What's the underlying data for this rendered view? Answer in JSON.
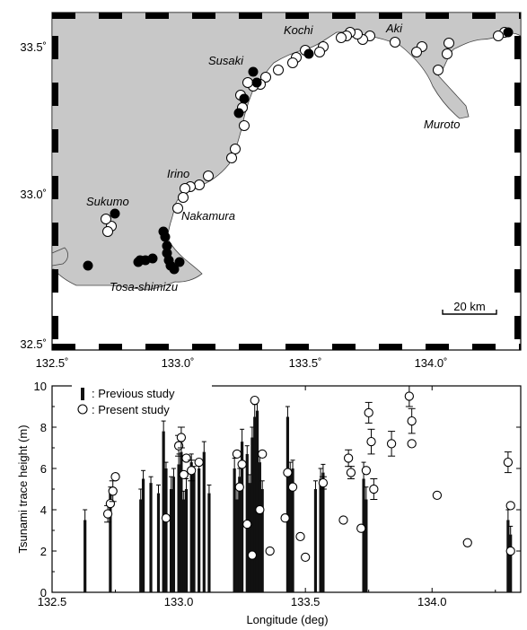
{
  "colors": {
    "land": "#c8c8c8",
    "sea": "#ffffff",
    "ink": "#000000",
    "bar": "#111111"
  },
  "map": {
    "lon_ticks": [
      "132.5˚",
      "133.0˚",
      "133.5˚",
      "134.0˚"
    ],
    "lat_ticks": [
      "33.5˚",
      "33.0˚",
      "32.5˚"
    ],
    "lon_range": [
      132.5,
      134.35
    ],
    "lat_range": [
      32.48,
      33.6
    ],
    "place_labels": [
      "Kochi",
      "Aki",
      "Susaki",
      "Muroto",
      "Irino",
      "Sukumo",
      "Nakamura",
      "Tosa-shimizu"
    ],
    "scale_label": "20 km"
  },
  "chart_data": {
    "type": "scatter",
    "title": "",
    "xlabel": "Longitude (deg)",
    "ylabel": "Tsunami trace height (m)",
    "xlim": [
      132.5,
      134.35
    ],
    "ylim": [
      0,
      10
    ],
    "x_ticks": [
      "132.5",
      "133.0",
      "133.5",
      "134.0"
    ],
    "y_ticks": [
      "0",
      "2",
      "4",
      "6",
      "8",
      "10"
    ],
    "legend": {
      "position": "top-left",
      "entries": [
        ": Previous study",
        ": Present study"
      ]
    },
    "series": [
      {
        "name": "Previous study",
        "style": "bars",
        "x": [
          132.63,
          132.73,
          132.85,
          132.86,
          132.89,
          132.92,
          132.94,
          132.95,
          132.97,
          132.98,
          133.0,
          133.01,
          133.02,
          133.03,
          133.05,
          133.06,
          133.08,
          133.1,
          133.12,
          133.22,
          133.23,
          133.24,
          133.25,
          133.27,
          133.28,
          133.29,
          133.3,
          133.31,
          133.32,
          133.33,
          133.43,
          133.44,
          133.45,
          133.54,
          133.56,
          133.57,
          133.73,
          133.74,
          134.3,
          134.31
        ],
        "y": [
          3.5,
          4.8,
          4.5,
          5.5,
          5.3,
          4.8,
          7.8,
          6.0,
          5.0,
          5.6,
          6.2,
          6.8,
          4.5,
          5.0,
          6.3,
          5.8,
          6.0,
          6.8,
          4.8,
          6.0,
          4.5,
          5.6,
          7.3,
          6.7,
          5.3,
          7.5,
          8.5,
          8.8,
          6.3,
          5.0,
          8.5,
          5.8,
          6.0,
          5.0,
          5.5,
          5.8,
          5.5,
          4.5,
          3.5,
          2.8
        ],
        "err": [
          0.5,
          0.3,
          0.5,
          0.4,
          0.3,
          0.4,
          0.5,
          0.3,
          0.6,
          0.4,
          0.5,
          0.5,
          0.4,
          0.5,
          0.4,
          0.3,
          0.4,
          0.5,
          0.4,
          0.5,
          0.5,
          0.4,
          0.6,
          0.4,
          0.4,
          0.5,
          0.6,
          0.5,
          0.5,
          0.4,
          0.5,
          0.5,
          0.4,
          0.4,
          0.5,
          0.4,
          0.8,
          0.6,
          0.5,
          0.4
        ]
      },
      {
        "name": "Present study",
        "style": "circles",
        "x": [
          132.72,
          132.73,
          132.74,
          132.75,
          132.95,
          133.0,
          133.01,
          133.02,
          133.03,
          133.05,
          133.08,
          133.23,
          133.24,
          133.25,
          133.27,
          133.29,
          133.3,
          133.32,
          133.33,
          133.36,
          133.42,
          133.43,
          133.45,
          133.48,
          133.5,
          133.57,
          133.65,
          133.67,
          133.68,
          133.72,
          133.74,
          133.75,
          133.76,
          133.77,
          133.84,
          133.91,
          133.92,
          133.92,
          134.02,
          134.14,
          134.3,
          134.31,
          134.31
        ],
        "y": [
          3.8,
          4.3,
          4.9,
          5.6,
          3.6,
          7.1,
          7.5,
          5.7,
          6.5,
          5.9,
          6.3,
          6.7,
          5.1,
          6.2,
          3.3,
          1.8,
          9.3,
          4.0,
          6.7,
          2.0,
          3.6,
          5.8,
          5.1,
          2.7,
          1.7,
          5.3,
          3.5,
          6.5,
          5.8,
          3.1,
          5.9,
          8.7,
          7.3,
          5.0,
          7.2,
          9.5,
          8.3,
          7.2,
          4.7,
          2.4,
          6.3,
          4.2,
          2.0
        ],
        "err": [
          0.4,
          0.0,
          0.5,
          0.0,
          0.0,
          0.5,
          0.5,
          0.0,
          0.0,
          0.5,
          0.0,
          0.0,
          0.0,
          0.0,
          0.0,
          0.0,
          0.0,
          0.0,
          0.0,
          0.0,
          0.0,
          0.0,
          0.0,
          0.0,
          0.0,
          0.3,
          0.0,
          0.4,
          0.3,
          0.0,
          0.0,
          0.5,
          0.6,
          0.5,
          0.6,
          0.5,
          0.6,
          0.0,
          0.0,
          0.0,
          0.5,
          0.0,
          0.0
        ]
      }
    ]
  }
}
